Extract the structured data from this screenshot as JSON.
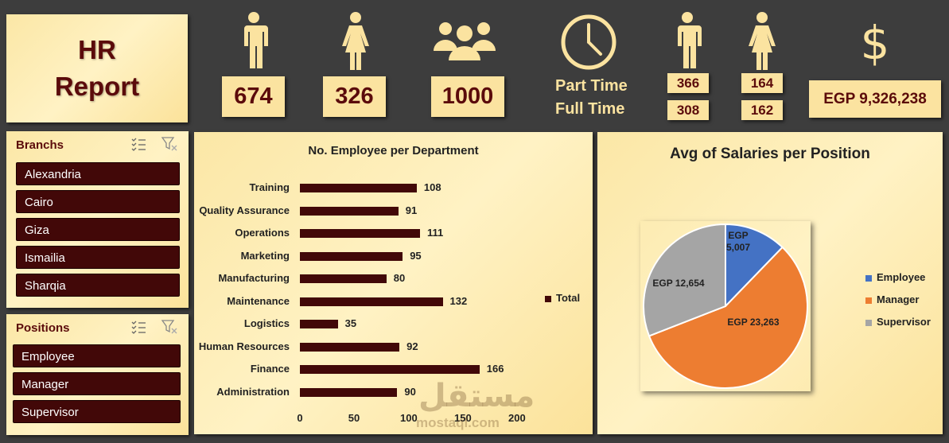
{
  "title": {
    "line1": "HR",
    "line2": "Report"
  },
  "kpis": {
    "male_total": "674",
    "female_total": "326",
    "all_total": "1000",
    "part_time_label": "Part Time",
    "full_time_label": "Full Time",
    "male_part_time": "366",
    "male_full_time": "308",
    "female_part_time": "164",
    "female_full_time": "162",
    "total_salary": "EGP 9,326,238"
  },
  "icons": {
    "male": "male-person-icon",
    "female": "female-person-icon",
    "group": "group-icon",
    "clock": "clock-icon",
    "dollar": "dollar-icon"
  },
  "branches": {
    "header": "Branchs",
    "items": [
      "Alexandria",
      "Cairo",
      "Giza",
      "Ismailia",
      "Sharqia"
    ]
  },
  "positions": {
    "header": "Positions",
    "items": [
      "Employee",
      "Manager",
      "Supervisor"
    ]
  },
  "chart_data": [
    {
      "type": "bar",
      "orientation": "horizontal",
      "title": "No. Employee per Department",
      "categories": [
        "Training",
        "Quality Assurance",
        "Operations",
        "Marketing",
        "Manufacturing",
        "Maintenance",
        "Logistics",
        "Human Resources",
        "Finance",
        "Administration"
      ],
      "values": [
        108,
        91,
        111,
        95,
        80,
        132,
        35,
        92,
        166,
        90
      ],
      "series_name": "Total",
      "xlim": [
        0,
        200
      ],
      "xticks": [
        "0",
        "50",
        "100",
        "150",
        "200"
      ],
      "legend": "right",
      "color": "#420808"
    },
    {
      "type": "pie",
      "title": "Avg of Salaries per Position",
      "categories": [
        "Employee",
        "Manager",
        "Supervisor"
      ],
      "values": [
        5007,
        23263,
        12654
      ],
      "labels": [
        "EGP 5,007",
        "EGP 23,263",
        "EGP 12,654"
      ],
      "colors": [
        "#4472c4",
        "#ed7d31",
        "#a5a5a5"
      ],
      "legend": "right"
    }
  ],
  "watermark": {
    "text1": "مستقل",
    "text2": "mostaql.com"
  }
}
